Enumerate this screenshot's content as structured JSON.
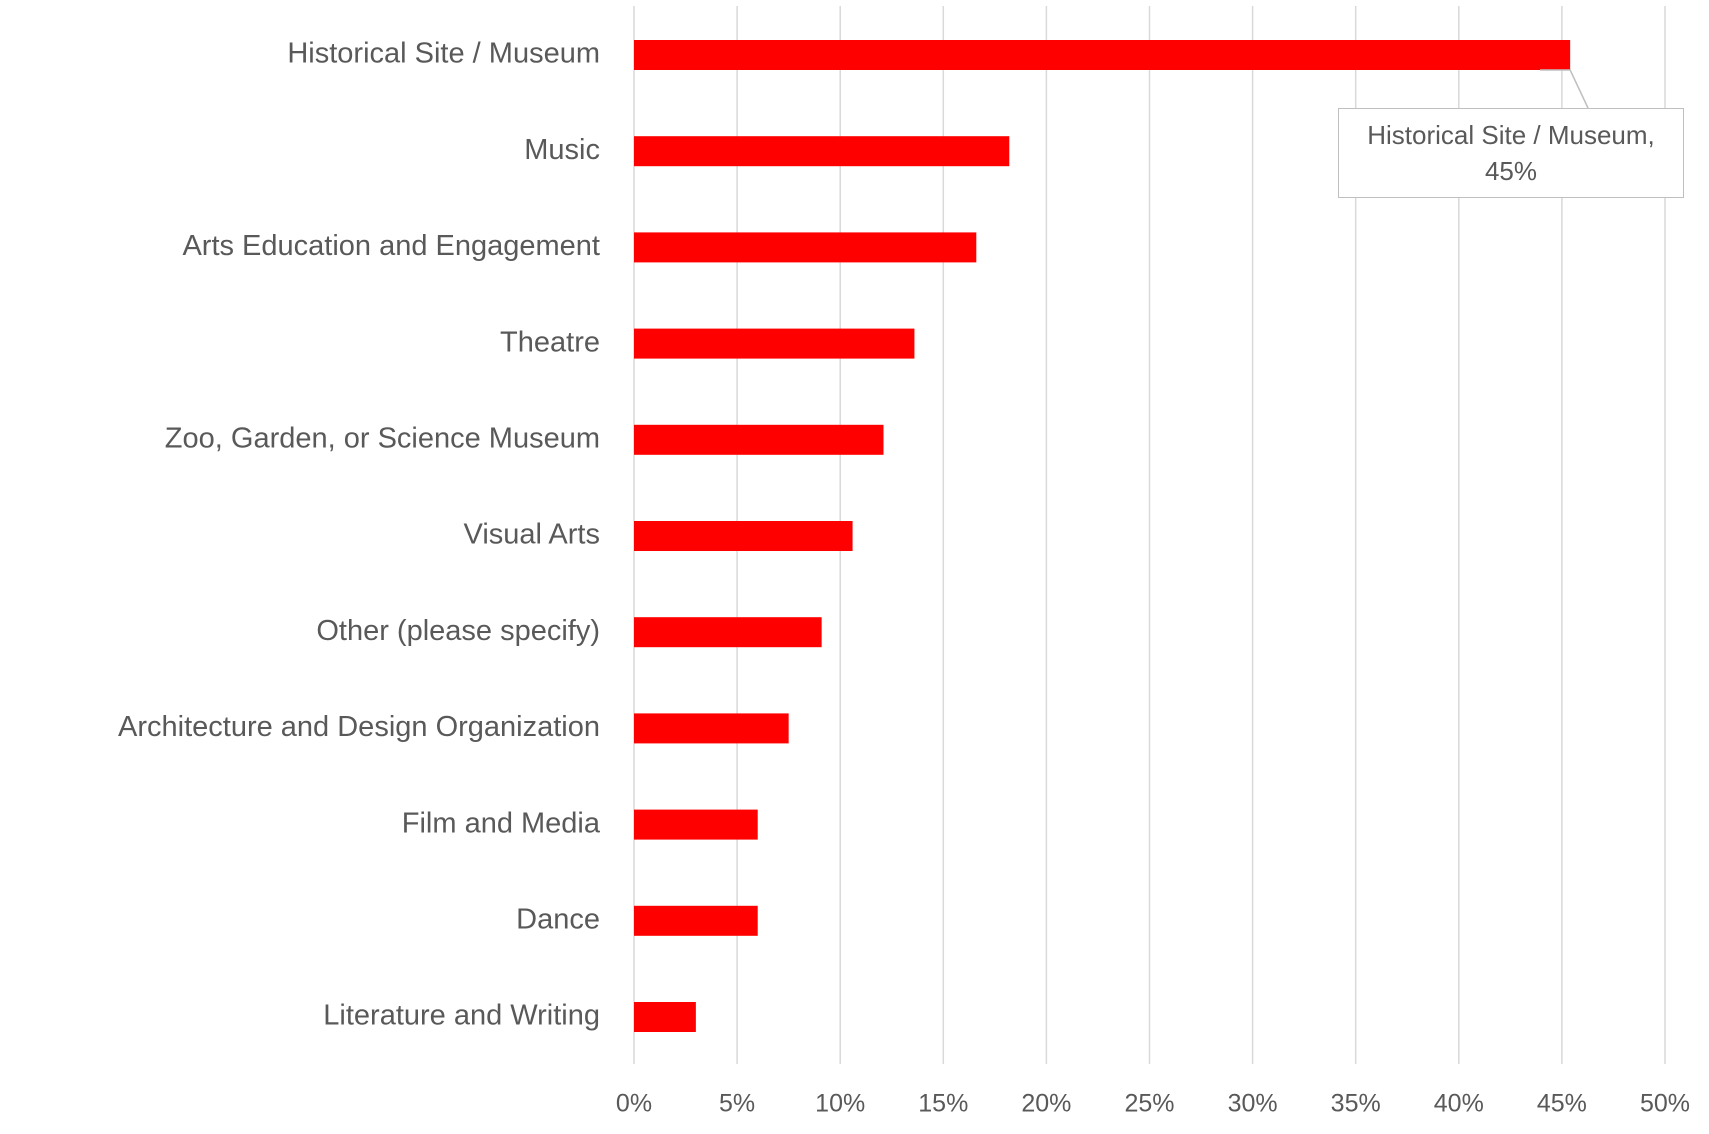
{
  "chart_data": {
    "type": "hbar",
    "categories": [
      "Historical Site / Museum",
      "Music",
      "Arts Education and Engagement",
      "Theatre",
      "Zoo, Garden, or Science Museum",
      "Visual Arts",
      "Other (please specify)",
      "Architecture and Design Organization",
      "Film and Media",
      "Dance",
      "Literature and Writing"
    ],
    "values": [
      45.4,
      18.2,
      16.6,
      13.6,
      12.1,
      10.6,
      9.1,
      7.5,
      6.0,
      6.0,
      3.0
    ],
    "value_labels": [
      "Historical Site / Museum, 45%",
      null,
      null,
      null,
      null,
      null,
      null,
      null,
      null,
      null,
      null
    ],
    "color": "#ff0000",
    "xlim": [
      0,
      50
    ],
    "xticks": [
      {
        "value": 0,
        "label": "0%"
      },
      {
        "value": 5,
        "label": "5%"
      },
      {
        "value": 10,
        "label": "10%"
      },
      {
        "value": 15,
        "label": "15%"
      },
      {
        "value": 20,
        "label": "20%"
      },
      {
        "value": 25,
        "label": "25%"
      },
      {
        "value": 30,
        "label": "30%"
      },
      {
        "value": 35,
        "label": "35%"
      },
      {
        "value": 40,
        "label": "40%"
      },
      {
        "value": 45,
        "label": "45%"
      },
      {
        "value": 50,
        "label": "50%"
      }
    ],
    "grid": true
  }
}
